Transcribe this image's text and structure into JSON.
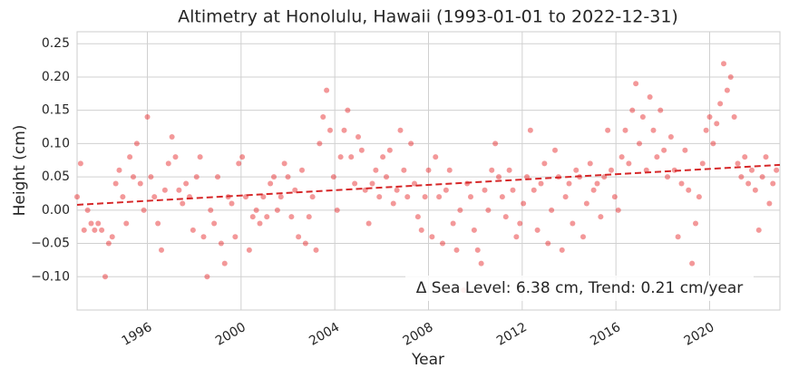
{
  "chart_data": {
    "type": "scatter",
    "title": "Altimetry at Honolulu, Hawaii (1993-01-01 to 2022-12-31)",
    "x_label": "Year",
    "y_label": "Height (cm)",
    "annotation": "Δ Sea Level: 6.38 cm, Trend: 0.21 cm/year",
    "xlim": [
      1993,
      2023
    ],
    "xticks": [
      1996,
      2000,
      2004,
      2008,
      2012,
      2016,
      2020
    ],
    "ylim": [
      -0.15,
      0.268
    ],
    "yticks": [
      {
        "value": -0.1,
        "label": "−0.10"
      },
      {
        "value": -0.05,
        "label": "−0.05"
      },
      {
        "value": 0,
        "label": "0.00"
      },
      {
        "value": 0.05,
        "label": "0.05"
      },
      {
        "value": 0.1,
        "label": "0.10"
      },
      {
        "value": 0.15,
        "label": "0.15"
      },
      {
        "value": 0.2,
        "label": "0.20"
      },
      {
        "value": 0.25,
        "label": "0.25"
      }
    ],
    "grid": true,
    "color": "#e41a1c",
    "x": [
      1993,
      1993.15,
      1993.3,
      1993.45,
      1993.6,
      1993.75,
      1993.9,
      1994.05,
      1994.2,
      1994.35,
      1994.5,
      1994.65,
      1994.8,
      1994.95,
      1995.1,
      1995.25,
      1995.4,
      1995.55,
      1995.7,
      1995.85,
      1996,
      1996.15,
      1996.3,
      1996.45,
      1996.6,
      1996.75,
      1996.9,
      1997.05,
      1997.2,
      1997.35,
      1997.5,
      1997.65,
      1997.8,
      1997.95,
      1998.1,
      1998.25,
      1998.4,
      1998.55,
      1998.7,
      1998.85,
      1999,
      1999.15,
      1999.3,
      1999.45,
      1999.6,
      1999.75,
      1999.9,
      2000.05,
      2000.2,
      2000.35,
      2000.5,
      2000.65,
      2000.8,
      2000.95,
      2001.1,
      2001.25,
      2001.4,
      2001.55,
      2001.7,
      2001.85,
      2002,
      2002.15,
      2002.3,
      2002.45,
      2002.6,
      2002.75,
      2002.9,
      2003.05,
      2003.2,
      2003.35,
      2003.5,
      2003.65,
      2003.8,
      2003.95,
      2004.1,
      2004.25,
      2004.4,
      2004.55,
      2004.7,
      2004.85,
      2005,
      2005.15,
      2005.3,
      2005.45,
      2005.6,
      2005.75,
      2005.9,
      2006.05,
      2006.2,
      2006.35,
      2006.5,
      2006.65,
      2006.8,
      2006.95,
      2007.1,
      2007.25,
      2007.4,
      2007.55,
      2007.7,
      2007.85,
      2008,
      2008.15,
      2008.3,
      2008.45,
      2008.6,
      2008.75,
      2008.9,
      2009.05,
      2009.2,
      2009.35,
      2009.5,
      2009.65,
      2009.8,
      2009.95,
      2010.1,
      2010.25,
      2010.4,
      2010.55,
      2010.7,
      2010.85,
      2011,
      2011.15,
      2011.3,
      2011.45,
      2011.6,
      2011.75,
      2011.9,
      2012.05,
      2012.2,
      2012.35,
      2012.5,
      2012.65,
      2012.8,
      2012.95,
      2013.1,
      2013.25,
      2013.4,
      2013.55,
      2013.7,
      2013.85,
      2014,
      2014.15,
      2014.3,
      2014.45,
      2014.6,
      2014.75,
      2014.9,
      2015.05,
      2015.2,
      2015.35,
      2015.5,
      2015.65,
      2015.8,
      2015.95,
      2016.1,
      2016.25,
      2016.4,
      2016.55,
      2016.7,
      2016.85,
      2017,
      2017.15,
      2017.3,
      2017.45,
      2017.6,
      2017.75,
      2017.9,
      2018.05,
      2018.2,
      2018.35,
      2018.5,
      2018.65,
      2018.8,
      2018.95,
      2019.1,
      2019.25,
      2019.4,
      2019.55,
      2019.7,
      2019.85,
      2020,
      2020.15,
      2020.3,
      2020.45,
      2020.6,
      2020.75,
      2020.9,
      2021.05,
      2021.2,
      2021.35,
      2021.5,
      2021.65,
      2021.8,
      2021.95,
      2022.1,
      2022.25,
      2022.4,
      2022.55,
      2022.7,
      2022.85
    ],
    "values": [
      0.02,
      0.07,
      -0.03,
      0.0,
      -0.02,
      -0.03,
      -0.02,
      -0.03,
      -0.1,
      -0.05,
      -0.04,
      0.04,
      0.06,
      0.02,
      -0.02,
      0.08,
      0.05,
      0.1,
      0.04,
      0.0,
      0.14,
      0.05,
      0.02,
      -0.02,
      -0.06,
      0.03,
      0.07,
      0.11,
      0.08,
      0.03,
      0.01,
      0.04,
      0.02,
      -0.03,
      0.05,
      0.08,
      -0.04,
      -0.1,
      0.0,
      -0.02,
      0.05,
      -0.05,
      -0.08,
      0.02,
      0.01,
      -0.04,
      0.07,
      0.08,
      0.02,
      -0.06,
      -0.01,
      0.0,
      -0.02,
      0.02,
      -0.01,
      0.04,
      0.05,
      0.0,
      0.02,
      0.07,
      0.05,
      -0.01,
      0.03,
      -0.04,
      0.06,
      -0.05,
      -0.01,
      0.02,
      -0.06,
      0.1,
      0.14,
      0.18,
      0.12,
      0.05,
      0.0,
      0.08,
      0.12,
      0.15,
      0.08,
      0.04,
      0.11,
      0.09,
      0.03,
      -0.02,
      0.04,
      0.06,
      0.02,
      0.08,
      0.05,
      0.09,
      0.01,
      0.03,
      0.12,
      0.06,
      0.02,
      0.1,
      0.04,
      -0.01,
      -0.03,
      0.02,
      0.06,
      -0.04,
      0.08,
      0.02,
      -0.05,
      0.03,
      0.06,
      -0.02,
      -0.06,
      0.0,
      -0.12,
      0.04,
      0.02,
      -0.03,
      -0.06,
      -0.08,
      0.03,
      0.0,
      0.06,
      0.1,
      0.05,
      0.02,
      -0.01,
      0.06,
      0.03,
      -0.04,
      -0.02,
      0.01,
      0.05,
      0.12,
      0.03,
      -0.03,
      0.04,
      0.07,
      -0.05,
      0.0,
      0.09,
      0.05,
      -0.06,
      0.02,
      0.04,
      -0.02,
      0.06,
      0.05,
      -0.04,
      0.01,
      0.07,
      0.03,
      0.04,
      -0.01,
      0.05,
      0.12,
      0.06,
      0.02,
      0.0,
      0.08,
      0.12,
      0.07,
      0.15,
      0.19,
      0.1,
      0.14,
      0.06,
      0.17,
      0.12,
      0.08,
      0.15,
      0.09,
      0.05,
      0.11,
      0.06,
      -0.04,
      0.04,
      0.09,
      0.03,
      -0.08,
      -0.02,
      0.02,
      0.07,
      0.12,
      0.14,
      0.1,
      0.13,
      0.16,
      0.22,
      0.18,
      0.2,
      0.14,
      0.07,
      0.05,
      0.08,
      0.04,
      0.06,
      0.03,
      -0.03,
      0.05,
      0.08,
      0.01,
      0.04,
      0.06
    ],
    "trend": {
      "x": [
        1993,
        2023
      ],
      "values": [
        0.008,
        0.068
      ],
      "color": "#d62728"
    }
  }
}
